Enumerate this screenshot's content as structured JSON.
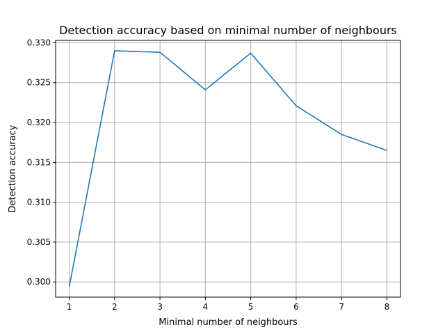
{
  "chart_data": {
    "type": "line",
    "title": "Detection accuracy based on minimal number of neighbours",
    "xlabel": "Minimal number of neighbours",
    "ylabel": "Detection accuracy",
    "x": [
      1,
      2,
      3,
      4,
      5,
      6,
      7,
      8
    ],
    "series": [
      {
        "values": [
          0.2994,
          0.329,
          0.3288,
          0.3241,
          0.3287,
          0.3221,
          0.3185,
          0.3165
        ]
      }
    ],
    "xlim": [
      0.7,
      8.3
    ],
    "ylim": [
      0.2981,
      0.3303
    ],
    "xticks": [
      1,
      2,
      3,
      4,
      5,
      6,
      7,
      8
    ],
    "yticks": [
      0.3,
      0.305,
      0.31,
      0.315,
      0.32,
      0.325,
      0.33
    ],
    "xtick_labels": [
      "1",
      "2",
      "3",
      "4",
      "5",
      "6",
      "7",
      "8"
    ],
    "ytick_labels": [
      "0.300",
      "0.305",
      "0.310",
      "0.315",
      "0.320",
      "0.325",
      "0.330"
    ],
    "grid": true,
    "line_color": "#1f77b4"
  }
}
